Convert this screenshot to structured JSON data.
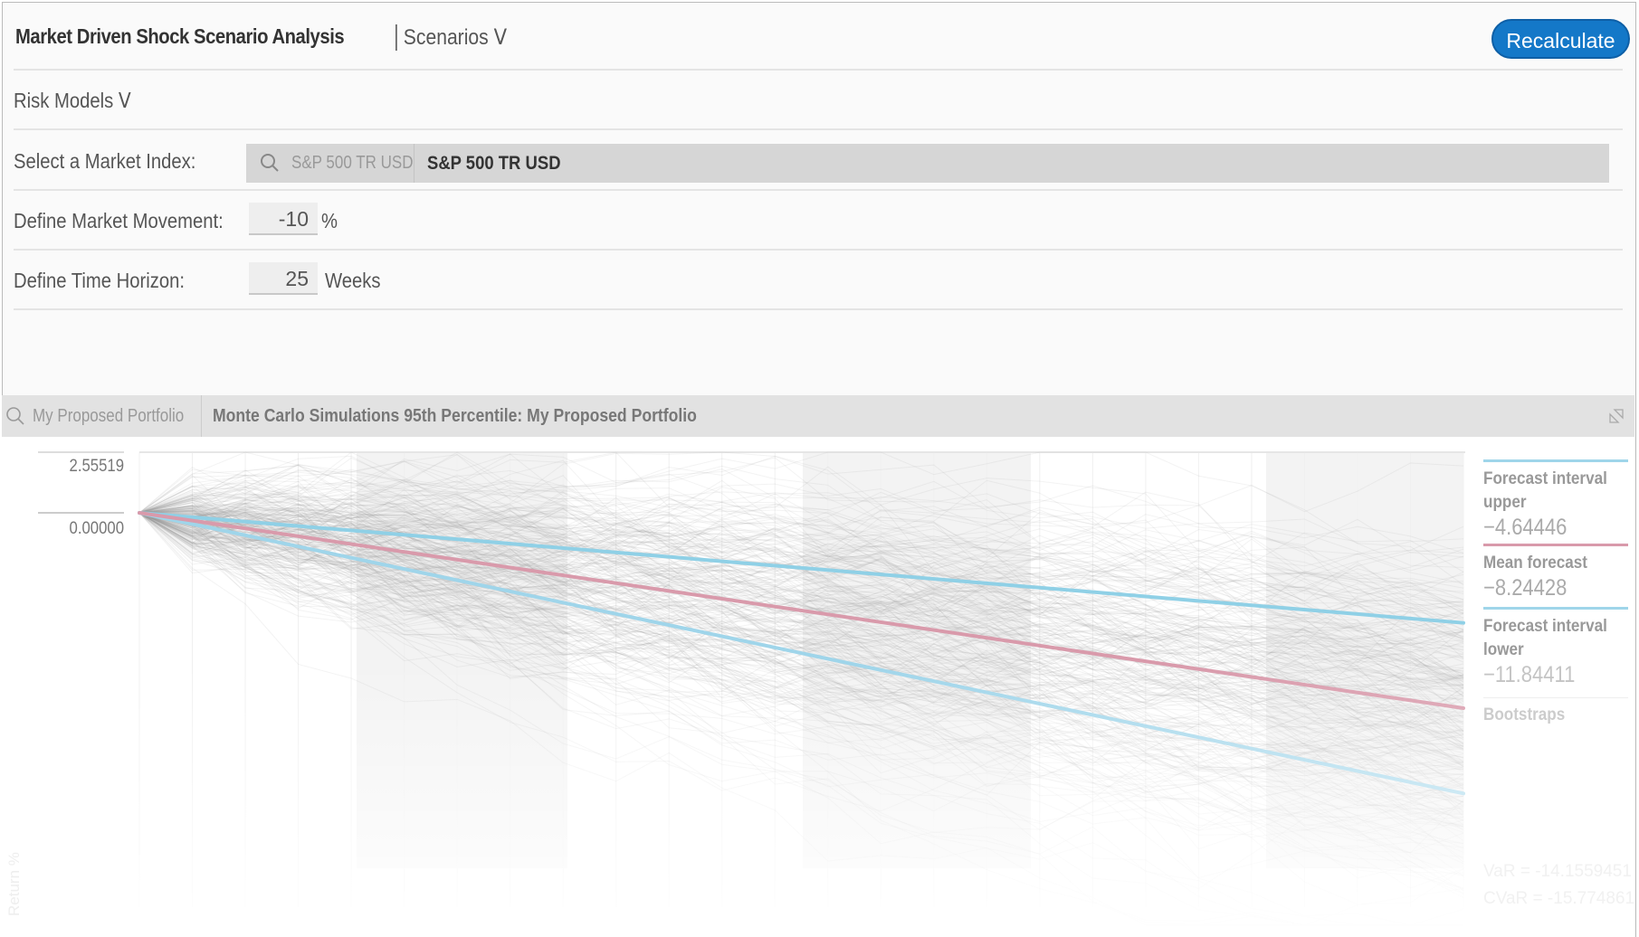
{
  "header": {
    "title": "Market Driven Shock Scenario Analysis",
    "scenarios_label": "Scenarios",
    "recalculate_label": "Recalculate",
    "accent_color": "#1478c8"
  },
  "risk_models": {
    "label": "Risk Models"
  },
  "form": {
    "market_index": {
      "label": "Select a Market Index:",
      "placeholder": "S&P 500 TR USD",
      "value": "S&P 500 TR USD"
    },
    "market_movement": {
      "label": "Define Market Movement:",
      "value": "-10",
      "unit": "%"
    },
    "time_horizon": {
      "label": "Define Time Horizon:",
      "value": "25",
      "unit": "Weeks"
    }
  },
  "chart_panel": {
    "portfolio_placeholder": "My Proposed Portfolio",
    "title": "Monte Carlo Simulations 95th Percentile: My Proposed Portfolio"
  },
  "chart_data": {
    "type": "line",
    "ylabel": "Return %",
    "y_ticks": [
      "2.55519",
      "0.00000"
    ],
    "x_range": [
      0,
      25
    ],
    "series": [
      {
        "name": "Forecast interval upper",
        "start": 0,
        "end": -4.64446,
        "display": "−4.64446",
        "color": "#8fd0e6"
      },
      {
        "name": "Mean forecast",
        "start": 0,
        "end": -8.24428,
        "display": "−8.24428",
        "color": "#d99aab"
      },
      {
        "name": "Forecast interval lower",
        "start": 0,
        "end": -11.84411,
        "display": "−11.84411",
        "color": "#9fd5ea"
      },
      {
        "name": "Bootstraps",
        "color": "#a8a8a8"
      }
    ],
    "var_text": "VaR = -14.1559451",
    "cvar_text": "CVaR = -15.774861"
  }
}
